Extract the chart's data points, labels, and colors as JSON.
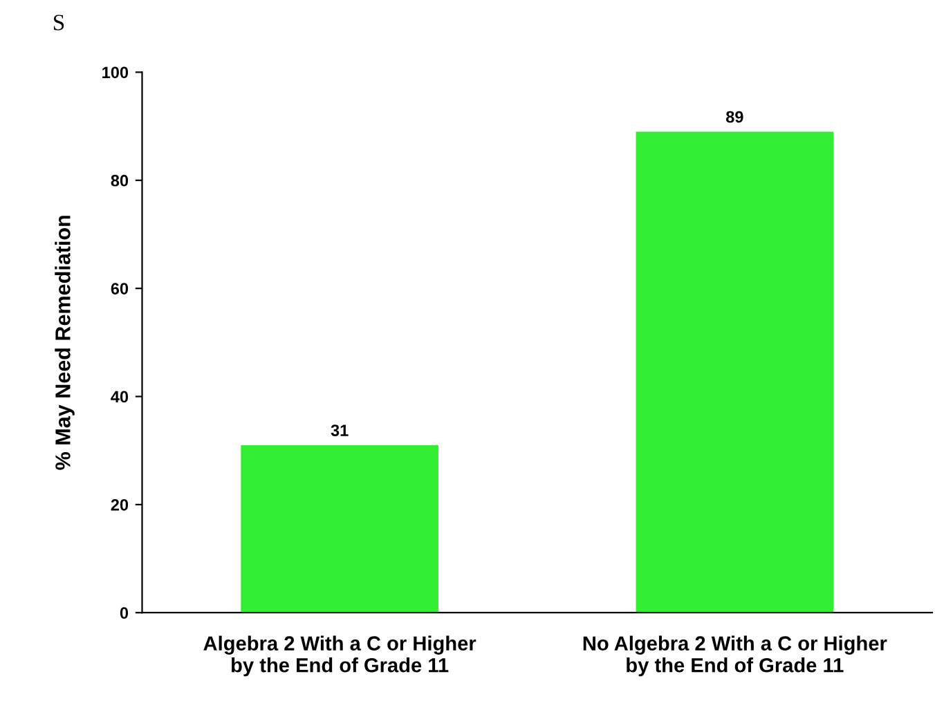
{
  "chart_data": {
    "type": "bar",
    "title": "S",
    "ylabel": "% May Need Remediation",
    "categories": [
      "Algebra 2 With a C or Higher\nby the End of Grade 11",
      "No Algebra 2 With a C or Higher\nby the End of Grade 11"
    ],
    "values": [
      31,
      89
    ],
    "color": "#33ee33",
    "ylim": [
      0,
      100
    ],
    "yticks": [
      0,
      20,
      40,
      60,
      80,
      100
    ],
    "grid": false,
    "data_labels": true
  }
}
